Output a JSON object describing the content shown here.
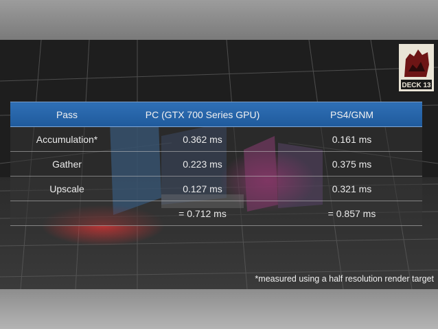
{
  "logo": {
    "text": "DECK 13"
  },
  "table": {
    "headers": [
      "Pass",
      "PC (GTX 700 Series GPU)",
      "PS4/GNM"
    ],
    "rows": [
      [
        "Accumulation*",
        "0.362 ms",
        "0.161 ms"
      ],
      [
        "Gather",
        "0.223 ms",
        "0.375 ms"
      ],
      [
        "Upscale",
        "0.127 ms",
        "0.321 ms"
      ],
      [
        "",
        "= 0.712 ms",
        "= 0.857 ms"
      ]
    ]
  },
  "footnote": "*measured using a half resolution render target",
  "colors": {
    "header": "#2667a9",
    "accent_red": "#8c1a1a"
  }
}
